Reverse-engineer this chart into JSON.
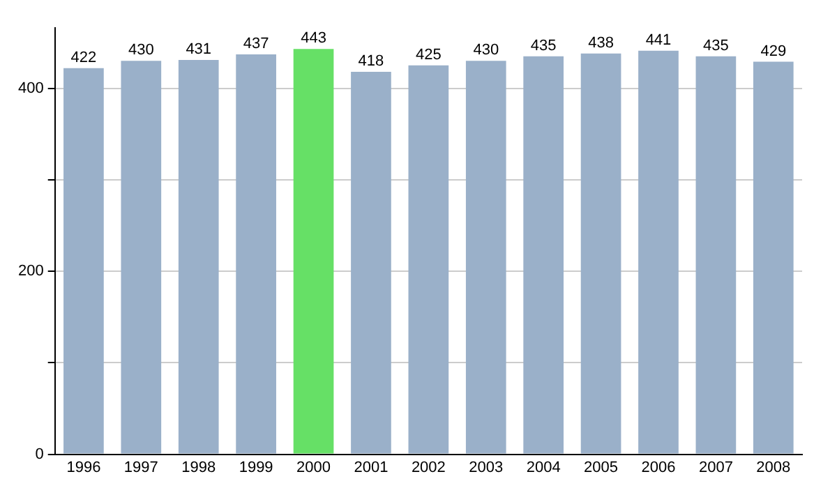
{
  "chart_data": {
    "type": "bar",
    "categories": [
      "1996",
      "1997",
      "1998",
      "1999",
      "2000",
      "2001",
      "2002",
      "2003",
      "2004",
      "2005",
      "2006",
      "2007",
      "2008"
    ],
    "values": [
      422,
      430,
      431,
      437,
      443,
      418,
      425,
      430,
      435,
      438,
      441,
      435,
      429
    ],
    "colors": [
      "#9ab0c9",
      "#9ab0c9",
      "#9ab0c9",
      "#9ab0c9",
      "#66e066",
      "#9ab0c9",
      "#9ab0c9",
      "#9ab0c9",
      "#9ab0c9",
      "#9ab0c9",
      "#9ab0c9",
      "#9ab0c9",
      "#9ab0c9"
    ],
    "ylim": [
      0,
      466
    ],
    "yticks": [
      0,
      {
        "value": 100,
        "label": null
      },
      200,
      {
        "value": 300,
        "label": null
      },
      400
    ],
    "grid": "y",
    "data_labels": true,
    "legend": false
  }
}
